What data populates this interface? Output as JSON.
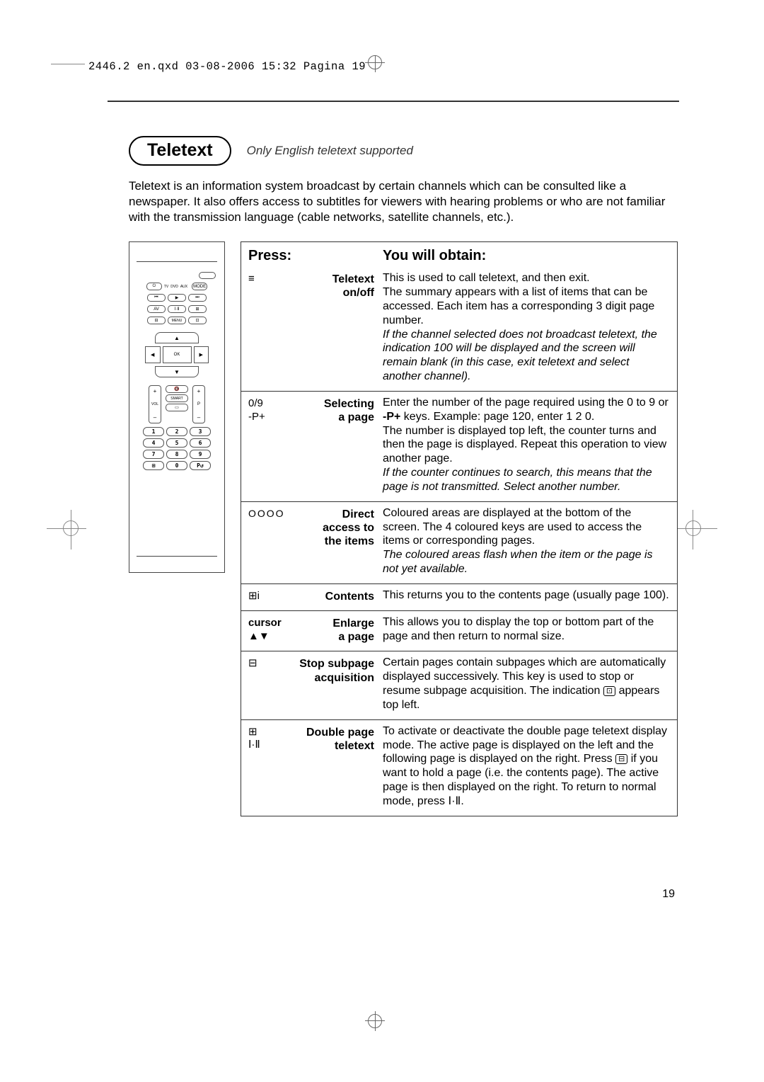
{
  "header_line": "2446.2 en.qxd  03-08-2006  15:32  Pagina 19",
  "title": "Teletext",
  "subtitle": "Only English teletext supported",
  "intro": "Teletext is an information system broadcast by certain channels which can be consulted like a newspaper. It also offers access to subtitles for viewers with hearing problems or who are not familiar with the transmission language (cable networks, satellite channels, etc.).",
  "table": {
    "head_press": "Press:",
    "head_obtain": "You will obtain:",
    "rows": [
      {
        "icon": "≡",
        "icon_class": "teletext-icon",
        "label": "Teletext on/off",
        "desc": "This is used to call teletext, and then exit.\nThe summary appears with a list of items that can be accessed. Each item has a corresponding 3 digit page number.",
        "desc_em": "If the channel selected does not broadcast teletext, the indication 100 will be displayed and the screen will remain blank (in this case, exit teletext and select another channel)."
      },
      {
        "icon": "0/9\n-P+",
        "label": "Selecting a page",
        "desc": "Enter the number of the page required using the 0 to 9 or -P+ keys. Example: page 120,  enter 1 2 0.\nThe number is displayed top left, the counter turns and then the page is displayed. Repeat this operation to view another page.",
        "desc_em": "If the counter continues to search, this means that the page is not transmitted. Select another number.",
        "bold_inline": "-P+"
      },
      {
        "icon": "OOOO",
        "icon_class": "dots4",
        "label": "Direct access to the items",
        "desc": "Coloured areas are displayed at the bottom of the screen. The 4 coloured keys are used to access the items or corresponding pages.",
        "desc_em": "The coloured areas flash when the item or the page is not yet available."
      },
      {
        "icon": "⊞i",
        "label": "Contents",
        "desc": "This returns you to the contents page (usually page 100)."
      },
      {
        "icon": "cursor\n▲▼",
        "label": "Enlarge a page",
        "desc": "This allows you to display the top or bottom part of the page and then return to normal size."
      },
      {
        "icon": "⊟",
        "label": "Stop subpage acquisition",
        "desc_html": "Certain pages contain subpages which are automatically displayed successively. This key is used to stop or resume subpage acquisition. The indication <span class=\"inline-icon\">⊡</span> appears top left."
      },
      {
        "icon": "⊞\n\nⅠ·Ⅱ",
        "label": "Double page teletext",
        "desc_html": "To activate or deactivate the double page teletext display mode. The active page is displayed on the left and the following page is displayed on the right. Press <span class=\"inline-icon\">⊟</span> if you want to hold a page (i.e. the contents page). The active page is then displayed on the right. To return to normal mode, press Ⅰ·Ⅱ."
      }
    ]
  },
  "page_number": "19",
  "remote": {
    "keys_row1": [
      "⏻",
      "TV",
      "DVD",
      "AUX",
      "",
      "MODE"
    ],
    "keys_row2": [
      "⏮",
      "▶",
      "⏭"
    ],
    "keys_row3": [
      "AV",
      "—",
      "⊞"
    ],
    "keys_row4": [
      "⊟",
      "MENU",
      "⊡"
    ],
    "nav": {
      "up": "▲",
      "down": "▼",
      "left": "◀",
      "right": "▶",
      "ok": "OK"
    },
    "vol_label": "VOL",
    "smart": "SMART",
    "numpad": [
      "1",
      "2",
      "3",
      "4",
      "5",
      "6",
      "7",
      "8",
      "9",
      "⊞",
      "0",
      "P↺"
    ]
  }
}
